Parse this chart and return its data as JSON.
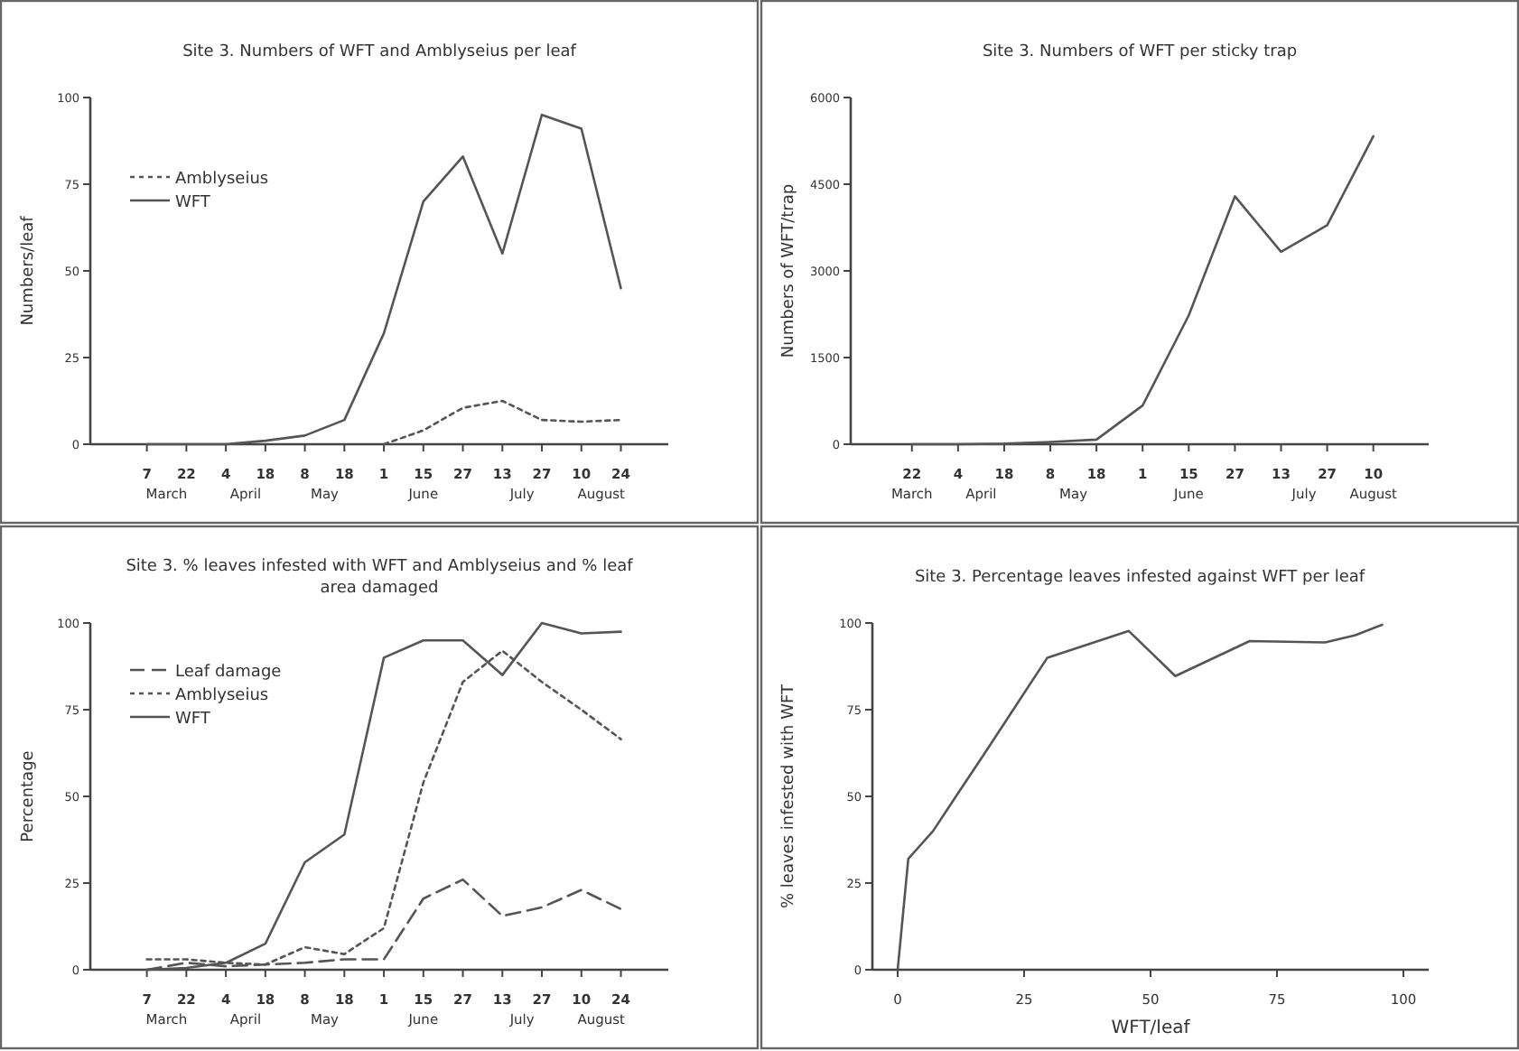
{
  "chart_data": [
    {
      "type": "line",
      "title": "Site 3. Numbers of WFT and Amblyseius per leaf",
      "ylabel": "Numbers/leaf",
      "categories": [
        "7",
        "22",
        "4",
        "18",
        "8",
        "18",
        "1",
        "15",
        "27",
        "13",
        "27",
        "10",
        "24"
      ],
      "annotations": [
        "March",
        "April",
        "May",
        "June",
        "July",
        "August"
      ],
      "ylim": [
        0,
        100
      ],
      "yticks": [
        0,
        25,
        50,
        75,
        100
      ],
      "legend": "top left",
      "series": [
        {
          "name": "Amblyseius",
          "color": "#555555",
          "line_style": "dotted",
          "values": [
            null,
            null,
            null,
            null,
            null,
            null,
            0,
            4,
            10.5,
            12.5,
            7,
            6.5,
            7
          ]
        },
        {
          "name": "WFT",
          "color": "#555555",
          "line_style": "solid",
          "values": [
            0,
            0,
            0,
            1,
            2.5,
            7,
            32,
            70,
            83,
            55,
            95,
            91,
            45
          ]
        }
      ]
    },
    {
      "type": "line",
      "title": "Site 3. Numbers of WFT per sticky trap",
      "ylabel": "Numbers of WFT/trap",
      "categories": [
        "22",
        "4",
        "18",
        "8",
        "18",
        "1",
        "15",
        "27",
        "13",
        "27",
        "10"
      ],
      "annotations": [
        "March",
        "April",
        "May",
        "June",
        "July",
        "August"
      ],
      "ylim": [
        0,
        6000
      ],
      "yticks": [
        0,
        1500,
        3000,
        4500,
        6000
      ],
      "series": [
        {
          "color": "#555555",
          "line_style": "solid",
          "values": [
            0,
            0,
            10,
            40,
            80,
            670,
            2230,
            4290,
            3330,
            3790,
            5330
          ]
        }
      ]
    },
    {
      "type": "line",
      "title": "Site 3. % leaves infested with WFT and Amblyseius and % leaf area damaged",
      "ylabel": "Percentage",
      "categories": [
        "7",
        "22",
        "4",
        "18",
        "8",
        "18",
        "1",
        "15",
        "27",
        "13",
        "27",
        "10",
        "24"
      ],
      "annotations": [
        "March",
        "April",
        "May",
        "June",
        "July",
        "August"
      ],
      "ylim": [
        0,
        100
      ],
      "yticks": [
        0,
        25,
        50,
        75,
        100
      ],
      "legend": "top left",
      "series": [
        {
          "name": "Leaf damage",
          "color": "#555555",
          "line_style": "dashed",
          "values": [
            0,
            2,
            1,
            1.5,
            2,
            3,
            3,
            20.5,
            26,
            15.5,
            18,
            23,
            17.5
          ]
        },
        {
          "name": "Amblyseius",
          "color": "#555555",
          "line_style": "dotted",
          "values": [
            3,
            3,
            2,
            1.5,
            6.5,
            4.5,
            12,
            54,
            83,
            92,
            83,
            75,
            66.5
          ]
        },
        {
          "name": "WFT",
          "color": "#555555",
          "line_style": "solid",
          "values": [
            0,
            0.5,
            2,
            7.5,
            31,
            39,
            90,
            95,
            95,
            85,
            100,
            97,
            97.5
          ]
        }
      ]
    },
    {
      "type": "line",
      "title": "Site 3. Percentage leaves infested against WFT per leaf",
      "xlabel": "WFT/leaf",
      "ylabel": "% leaves infested with WFT",
      "xlim": [
        -5,
        105
      ],
      "xticks": [
        0,
        25,
        50,
        75,
        100
      ],
      "ylim": [
        0,
        100
      ],
      "yticks": [
        0,
        25,
        50,
        75,
        100
      ],
      "series": [
        {
          "color": "#555555",
          "line_style": "solid",
          "x": [
            0,
            2.1,
            7,
            11.7,
            17,
            29.6,
            45.7,
            54.9,
            69.6,
            84.5,
            90.5,
            95.8
          ],
          "values": [
            0,
            32,
            40,
            50.4,
            62,
            90,
            97.7,
            84.7,
            94.8,
            94.4,
            96.5,
            99.5
          ]
        }
      ]
    }
  ]
}
